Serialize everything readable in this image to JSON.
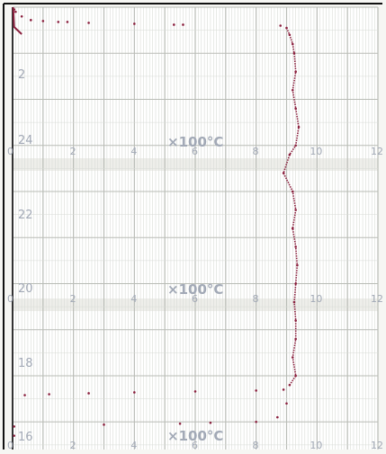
{
  "chart_data": {
    "type": "scatter",
    "title": "",
    "xlabel": "",
    "ylabel": "",
    "x_unit": "×100°C",
    "x_ticks": [
      "0",
      "2",
      "4",
      "6",
      "8",
      "10",
      "12"
    ],
    "hour_labels": [
      "2",
      "24",
      "22",
      "20",
      "18",
      "16"
    ],
    "xlim": [
      0,
      12
    ],
    "grid": true,
    "colors": {
      "paper": "#f6f6f3",
      "grid_minor": "#d8dbd6",
      "grid_major": "#b9bcb6",
      "labels": "#a2a9b6",
      "trace": "#8a1f3d"
    },
    "series": [
      {
        "name": "",
        "points": [
          [
            0.05,
            2.95
          ],
          [
            0.1,
            2.9
          ],
          [
            0.3,
            2.8
          ],
          [
            0.6,
            2.72
          ],
          [
            1.0,
            2.7
          ],
          [
            1.5,
            2.68
          ],
          [
            1.8,
            2.68
          ],
          [
            2.5,
            2.66
          ],
          [
            4.0,
            2.64
          ],
          [
            5.3,
            2.62
          ],
          [
            5.6,
            2.62
          ],
          [
            8.8,
            2.6
          ],
          [
            9.0,
            2.55
          ],
          [
            9.1,
            2.4
          ],
          [
            9.2,
            2.2
          ],
          [
            9.25,
            2.0
          ],
          [
            9.3,
            1.6
          ],
          [
            9.2,
            1.2
          ],
          [
            9.3,
            0.8
          ],
          [
            9.4,
            0.4
          ],
          [
            9.3,
            0.0
          ],
          [
            9.1,
            -0.2
          ],
          [
            8.9,
            -0.6
          ],
          [
            9.2,
            -1.0
          ],
          [
            9.3,
            -1.4
          ],
          [
            9.2,
            -1.8
          ],
          [
            9.3,
            -2.2
          ],
          [
            9.35,
            -2.6
          ],
          [
            9.3,
            -3.0
          ],
          [
            9.25,
            -3.4
          ],
          [
            9.3,
            -3.8
          ],
          [
            9.3,
            -4.2
          ],
          [
            9.2,
            -4.6
          ],
          [
            9.3,
            -5.0
          ],
          [
            9.1,
            -5.2
          ],
          [
            8.9,
            -5.3
          ],
          [
            8.0,
            -5.32
          ],
          [
            6.0,
            -5.34
          ],
          [
            4.0,
            -5.36
          ],
          [
            2.5,
            -5.38
          ],
          [
            1.2,
            -5.4
          ],
          [
            0.4,
            -5.42
          ],
          [
            9.0,
            -5.6
          ],
          [
            8.7,
            -5.9
          ],
          [
            8.0,
            -6.0
          ],
          [
            6.5,
            -6.02
          ],
          [
            5.5,
            -6.04
          ],
          [
            3.0,
            -6.06
          ],
          [
            0.05,
            -6.1
          ],
          [
            0.05,
            -6.3
          ]
        ]
      }
    ],
    "y_note": "y values in hours on a 24-hour clock, decreasing downward; values ≤ 0 wrap to the previous day"
  }
}
